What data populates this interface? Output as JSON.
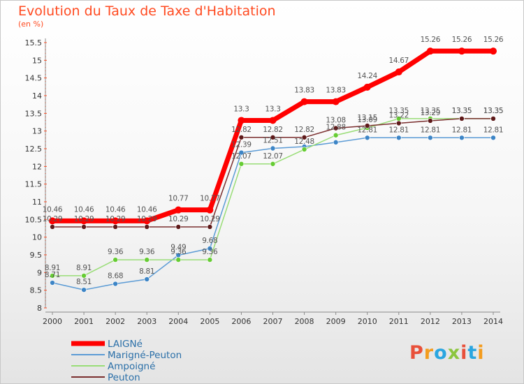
{
  "title": "Evolution du Taux de Taxe d'Habitation",
  "subtitle": "(en %)",
  "logo": {
    "text": "Proxiti",
    "letter_colors": [
      "#e8503a",
      "#f39c1e",
      "#2aa6e0",
      "#8cc63f",
      "#e8503a",
      "#2aa6e0",
      "#f39c1e"
    ]
  },
  "chart_data": {
    "type": "line",
    "x": [
      2000,
      2001,
      2002,
      2003,
      2004,
      2005,
      2006,
      2007,
      2008,
      2009,
      2010,
      2011,
      2012,
      2013,
      2014
    ],
    "ylim": [
      8,
      15.5
    ],
    "yticks": [
      "8",
      "8.5",
      "9",
      "9.5",
      "10",
      "10.5",
      "11",
      "11.5",
      "12",
      "12.5",
      "13",
      "13.5",
      "14",
      "14.5",
      "15",
      "15.5"
    ],
    "grid": false,
    "legend_position": "bottom-left",
    "series": [
      {
        "name": "LAIGNé",
        "color": "#ff0000",
        "line_width": 7,
        "marker": 5,
        "values": [
          10.46,
          10.46,
          10.46,
          10.46,
          10.77,
          10.77,
          13.3,
          13.3,
          13.83,
          13.83,
          14.24,
          14.67,
          15.26,
          15.26,
          15.26
        ]
      },
      {
        "name": "Marigné-Peuton",
        "color": "#5b9bd5",
        "marker_color": "#3d85c6",
        "line_width": 1.5,
        "marker": 3.5,
        "values": [
          8.71,
          8.51,
          8.68,
          8.81,
          9.49,
          9.68,
          12.39,
          12.51,
          12.56,
          12.68,
          12.81,
          12.81,
          12.81,
          12.81,
          12.81
        ],
        "labels": [
          "8.71",
          "8.51",
          "8.68",
          "8.81",
          "9.49",
          "9.68",
          "12.39",
          "12.51",
          "",
          "",
          "12.81",
          "12.81",
          "12.81",
          "12.81",
          "12.81"
        ]
      },
      {
        "name": "Ampoigné",
        "color": "#99dd77",
        "marker_color": "#66cc33",
        "line_width": 1.5,
        "marker": 3.5,
        "values": [
          8.91,
          8.91,
          9.36,
          9.36,
          9.36,
          9.36,
          12.07,
          12.07,
          12.48,
          12.88,
          13.09,
          13.35,
          13.35,
          13.35,
          13.35
        ]
      },
      {
        "name": "Peuton",
        "color": "#7a2e2e",
        "marker_color": "#5e1a1a",
        "line_width": 1.5,
        "marker": 3.5,
        "values": [
          10.29,
          10.29,
          10.29,
          10.29,
          10.29,
          10.29,
          12.82,
          12.82,
          12.82,
          13.08,
          13.15,
          13.22,
          13.29,
          13.35,
          13.35
        ]
      }
    ]
  }
}
